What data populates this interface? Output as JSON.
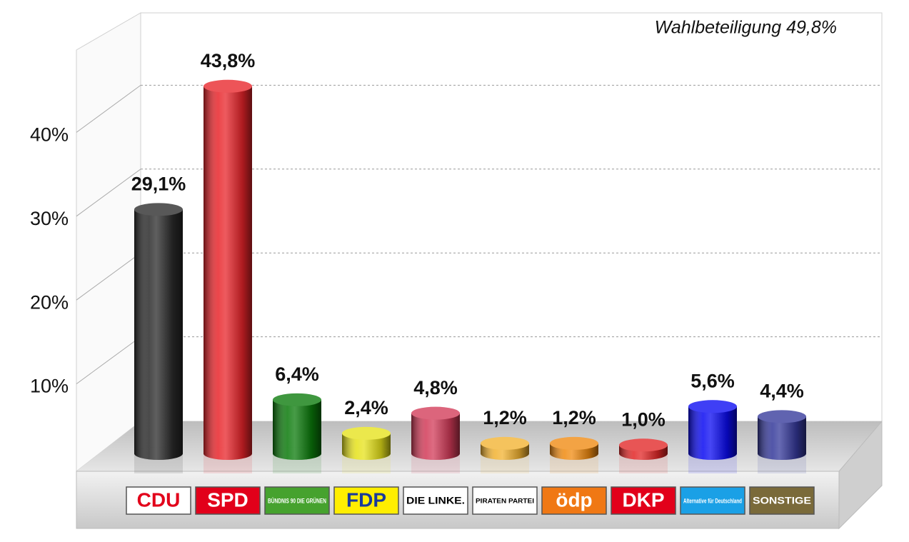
{
  "chart_data": {
    "type": "bar3d",
    "annotation": "Wahlbeteiligung 49,8%",
    "categories": [
      "CDU",
      "SPD",
      "BÜNDNIS 90 DIE GRÜNEN",
      "FDP",
      "DIE LINKE.",
      "PIRATEN PARTEI",
      "ödp",
      "DKP",
      "Alternative für Deutschland",
      "SONSTIGE"
    ],
    "values": [
      29.1,
      43.8,
      6.4,
      2.4,
      4.8,
      1.2,
      1.2,
      1.0,
      5.6,
      4.4
    ],
    "value_labels": [
      "29,1%",
      "43,8%",
      "6,4%",
      "2,4%",
      "4,8%",
      "1,2%",
      "1,2%",
      "1,0%",
      "5,6%",
      "4,4%"
    ],
    "colors": [
      "#2a2a2a",
      "#e8242a",
      "#0a7a0a",
      "#e6e21a",
      "#d23a58",
      "#f2b230",
      "#f08a10",
      "#e22626",
      "#0a0af2",
      "#34389a"
    ],
    "label_fills": [
      "#ffffff",
      "#e2001a",
      "#46a22e",
      "#ffee00",
      "#ffffff",
      "#ffffff",
      "#f07814",
      "#e2001a",
      "#1aa0e6",
      "#7a6a3a"
    ],
    "label_text_colors": [
      "#e2001a",
      "#ffffff",
      "#ffffff",
      "#1a3a9a",
      "#000000",
      "#000000",
      "#ffffff",
      "#ffffff",
      "#ffffff",
      "#ffffff"
    ],
    "ylim": [
      0,
      50
    ],
    "yticks": [
      {
        "value": 10,
        "label": "10%"
      },
      {
        "value": 20,
        "label": "20%"
      },
      {
        "value": 30,
        "label": "30%"
      },
      {
        "value": 40,
        "label": "40%"
      }
    ],
    "grid": true
  }
}
